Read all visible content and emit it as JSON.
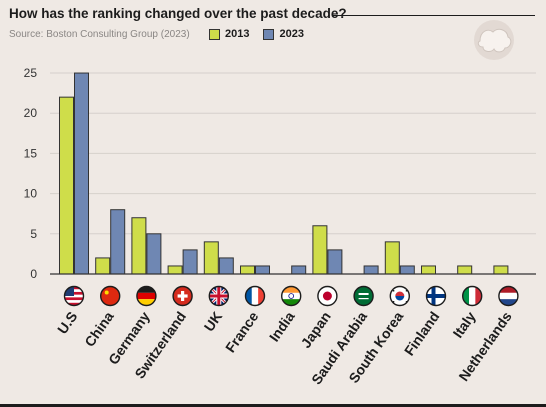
{
  "title": "How has the ranking changed over the past decade?",
  "source": "Source: Boston Consulting Group (2023)",
  "logo_icon": "brain-logo-icon",
  "colors": {
    "s2013": "#cfdd4a",
    "s2023": "#6f87b3",
    "background": "#efe9e4",
    "grid": "#d6d0cb"
  },
  "chart_data": {
    "type": "bar",
    "categories": [
      "U.S",
      "China",
      "Germany",
      "Switzerland",
      "UK",
      "France",
      "India",
      "Japan",
      "Saudi Arabia",
      "South Korea",
      "Finland",
      "Italy",
      "Netherlands"
    ],
    "flags": [
      "us-flag-icon",
      "china-flag-icon",
      "germany-flag-icon",
      "switzerland-flag-icon",
      "uk-flag-icon",
      "france-flag-icon",
      "india-flag-icon",
      "japan-flag-icon",
      "saudi-arabia-flag-icon",
      "south-korea-flag-icon",
      "finland-flag-icon",
      "italy-flag-icon",
      "netherlands-flag-icon"
    ],
    "series": [
      {
        "name": "2013",
        "values": [
          22,
          2,
          7,
          1,
          4,
          1,
          0,
          6,
          0,
          4,
          1,
          1,
          1
        ]
      },
      {
        "name": "2023",
        "values": [
          25,
          8,
          5,
          3,
          2,
          1,
          1,
          3,
          1,
          1,
          0,
          0,
          0
        ]
      }
    ],
    "yticks": [
      "0",
      "5",
      "10",
      "15",
      "20",
      "25"
    ],
    "ylim": [
      0,
      26
    ],
    "grid": true,
    "legend_position": "top-left"
  }
}
